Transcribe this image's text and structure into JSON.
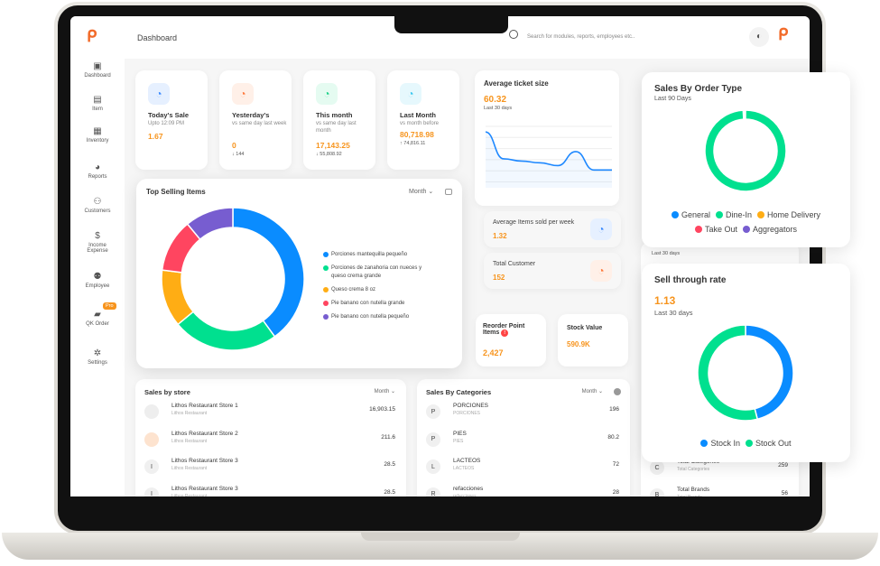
{
  "header": {
    "title": "Dashboard",
    "search_placeholder": "Search for modules, reports, employees etc..",
    "icons": [
      "logo",
      "search-icon",
      "moon-icon"
    ]
  },
  "sidebar": {
    "items": [
      {
        "label": "Dashboard",
        "icon": "dashboard-icon"
      },
      {
        "label": "Item",
        "icon": "item-icon"
      },
      {
        "label": "Inventory",
        "icon": "inventory-icon"
      },
      {
        "label": "Reports",
        "icon": "pie-icon"
      },
      {
        "label": "Customers",
        "icon": "customers-icon"
      },
      {
        "label": "Income Expense",
        "icon": "dollar-icon"
      },
      {
        "label": "Employee",
        "icon": "employee-icon"
      },
      {
        "label": "QK Order",
        "icon": "bag-icon",
        "badge": "Pro"
      },
      {
        "label": "Settings",
        "icon": "gear-icon"
      }
    ]
  },
  "stats": [
    {
      "title": "Today's Sale",
      "sub": "Upto 12:09 PM",
      "value": "1.67",
      "delta": "",
      "color": "#3b8bff",
      "bg": "#e6f0ff"
    },
    {
      "title": "Yesterday's",
      "sub": "vs same day last week",
      "value": "0",
      "delta": "↓ 144",
      "color": "#ff7a3d",
      "bg": "#fff0e8"
    },
    {
      "title": "This month",
      "sub": "vs same day last month",
      "value": "17,143.25",
      "delta": "↓ 55,808.92",
      "color": "#1fd28a",
      "bg": "#e5fbf1"
    },
    {
      "title": "Last Month",
      "sub": "vs month before",
      "value": "80,718.98",
      "delta": "↑ 74,816.11",
      "color": "#3cc8f0",
      "bg": "#e6f8fd"
    }
  ],
  "avg_ticket": {
    "title": "Average ticket size",
    "value": "60.32",
    "sub": "Last 30 days"
  },
  "avg_items": {
    "title": "Average Items sold per week",
    "value": "1.32"
  },
  "total_customer": {
    "title": "Total Customer",
    "value": "152"
  },
  "reorder": {
    "title": "Reorder Point Items",
    "value": "2,427",
    "badge": "!"
  },
  "stock_value": {
    "title": "Stock Value",
    "value": "590.9K"
  },
  "top_selling": {
    "title": "Top Selling Items",
    "filter": "Month"
  },
  "sales_by_store": {
    "title": "Sales by store",
    "filter": "Month",
    "rows": [
      {
        "name": "Lithos Restaurant Store 1",
        "sub": "Lithos Restaurant",
        "value": "16,903.15",
        "avatar": ""
      },
      {
        "name": "Lithos Restaurant Store 2",
        "sub": "Lithos Restaurant",
        "value": "211.6",
        "avatar": ""
      },
      {
        "name": "Lithos Restaurant Store 3",
        "sub": "Lithos Restaurant",
        "value": "28.5",
        "avatar": "I"
      },
      {
        "name": "Lithos Restaurant Store 3",
        "sub": "Lithos Restaurant",
        "value": "28.5",
        "avatar": "I"
      }
    ]
  },
  "sales_by_categories": {
    "title": "Sales By Categories",
    "filter": "Month",
    "rows": [
      {
        "name": "PORCIONES",
        "sub": "PORCIONES",
        "value": "196",
        "avatar": "P"
      },
      {
        "name": "PIES",
        "sub": "PIES",
        "value": "80.2",
        "avatar": "P"
      },
      {
        "name": "LACTEOS",
        "sub": "LACTEOS",
        "value": "72",
        "avatar": "L"
      },
      {
        "name": "refacciones",
        "sub": "refacciones",
        "value": "28",
        "avatar": "R"
      }
    ]
  },
  "behind": {
    "last30": "Last 30 days",
    "rows": [
      {
        "name": "Total Categories",
        "sub": "Total Categories",
        "value": "259",
        "avatar": "C"
      },
      {
        "name": "Total Brands",
        "sub": "Total Brands",
        "value": "56",
        "avatar": "B"
      }
    ]
  },
  "order_type": {
    "title": "Sales By Order Type",
    "sub": "Last 90 Days"
  },
  "sell_through": {
    "title": "Sell through rate",
    "value": "1.13",
    "sub": "Last 30 days"
  },
  "chart_data": [
    {
      "type": "pie",
      "title": "Top Selling Items",
      "donut": true,
      "categories": [
        "Porciones mantequilla pequeño",
        "Porciones de zanahoria con nueces y queso crema grande",
        "Queso crema 8 oz",
        "Pie banano con nutella grande",
        "Pie banano con nutella pequeño"
      ],
      "values": [
        40,
        24,
        13,
        12,
        11
      ],
      "colors": [
        "#0a8cff",
        "#00e08f",
        "#ffad14",
        "#ff4560",
        "#775dd0"
      ],
      "legend": "right"
    },
    {
      "type": "line",
      "title": "Average ticket size",
      "values": [
        90,
        42,
        38,
        35,
        30,
        55,
        22,
        22
      ],
      "color": "#1e88ff",
      "grid": true
    },
    {
      "type": "pie",
      "title": "Sales By Order Type",
      "donut": true,
      "categories": [
        "General",
        "Dine-In",
        "Home Delivery",
        "Take Out",
        "Aggregators"
      ],
      "values": [
        0,
        100,
        0,
        0,
        0
      ],
      "colors": [
        "#0a8cff",
        "#00e08f",
        "#ffad14",
        "#ff4560",
        "#775dd0"
      ],
      "legend": "bottom"
    },
    {
      "type": "pie",
      "title": "Sell through rate",
      "donut": true,
      "categories": [
        "Stock In",
        "Stock Out"
      ],
      "values": [
        46,
        54
      ],
      "colors": [
        "#0a8cff",
        "#00e08f"
      ],
      "legend": "bottom"
    }
  ]
}
